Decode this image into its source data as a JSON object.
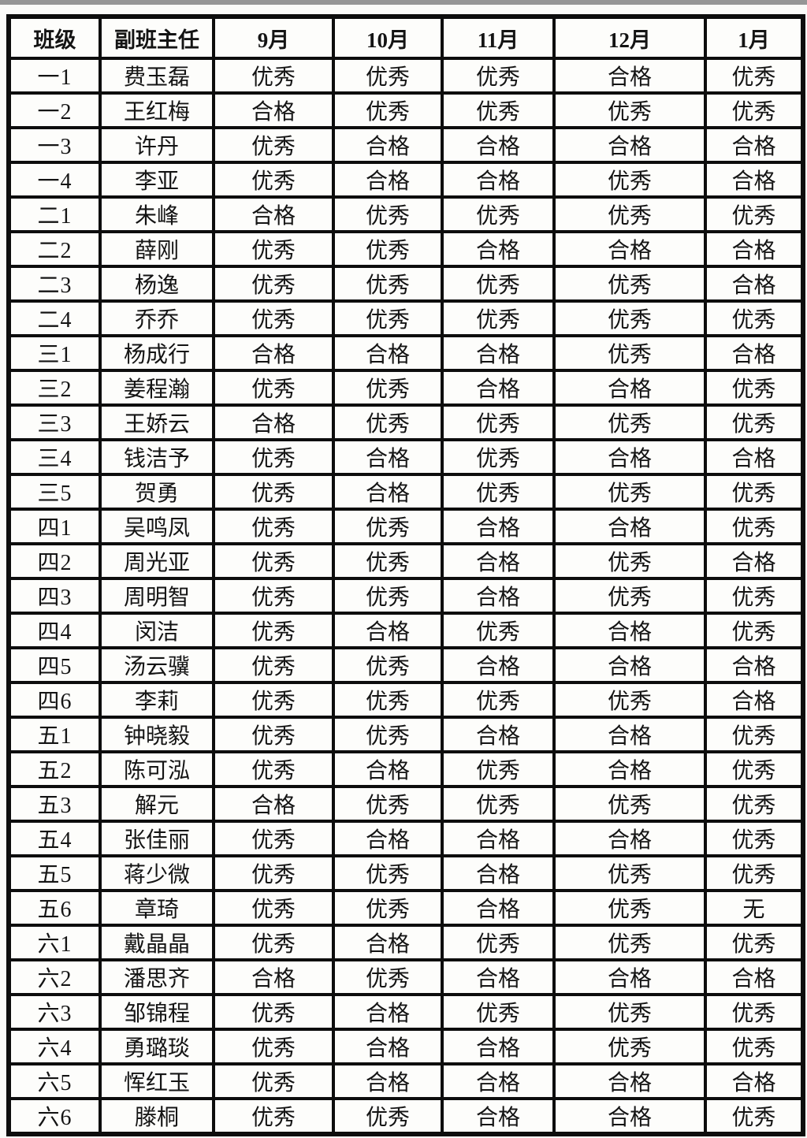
{
  "page": {
    "background_color": "#fbfbf9",
    "border_color": "#0d0d0d",
    "text_color": "#141414",
    "cell_background": "#fdfdfb"
  },
  "table": {
    "columns": [
      "班级",
      "副班主任",
      "9月",
      "10月",
      "11月",
      "12月",
      "1月"
    ],
    "grade_values_legend": [
      "优秀",
      "合格",
      "无"
    ],
    "rows": [
      {
        "class": "一1",
        "teacher": "费玉磊",
        "grades": [
          "优秀",
          "优秀",
          "优秀",
          "合格",
          "优秀"
        ]
      },
      {
        "class": "一2",
        "teacher": "王红梅",
        "grades": [
          "合格",
          "优秀",
          "优秀",
          "优秀",
          "优秀"
        ]
      },
      {
        "class": "一3",
        "teacher": "许丹",
        "grades": [
          "优秀",
          "合格",
          "合格",
          "合格",
          "合格"
        ]
      },
      {
        "class": "一4",
        "teacher": "李亚",
        "grades": [
          "优秀",
          "合格",
          "合格",
          "优秀",
          "合格"
        ]
      },
      {
        "class": "二1",
        "teacher": "朱峰",
        "grades": [
          "合格",
          "优秀",
          "优秀",
          "优秀",
          "优秀"
        ]
      },
      {
        "class": "二2",
        "teacher": "薛刚",
        "grades": [
          "优秀",
          "优秀",
          "合格",
          "合格",
          "合格"
        ]
      },
      {
        "class": "二3",
        "teacher": "杨逸",
        "grades": [
          "优秀",
          "优秀",
          "优秀",
          "优秀",
          "合格"
        ]
      },
      {
        "class": "二4",
        "teacher": "乔乔",
        "grades": [
          "优秀",
          "优秀",
          "优秀",
          "优秀",
          "优秀"
        ]
      },
      {
        "class": "三1",
        "teacher": "杨成行",
        "grades": [
          "合格",
          "合格",
          "合格",
          "优秀",
          "合格"
        ]
      },
      {
        "class": "三2",
        "teacher": "姜程瀚",
        "grades": [
          "优秀",
          "优秀",
          "合格",
          "合格",
          "优秀"
        ]
      },
      {
        "class": "三3",
        "teacher": "王娇云",
        "grades": [
          "合格",
          "优秀",
          "优秀",
          "优秀",
          "优秀"
        ]
      },
      {
        "class": "三4",
        "teacher": "钱洁予",
        "grades": [
          "优秀",
          "合格",
          "优秀",
          "合格",
          "合格"
        ]
      },
      {
        "class": "三5",
        "teacher": "贺勇",
        "grades": [
          "优秀",
          "合格",
          "优秀",
          "优秀",
          "优秀"
        ]
      },
      {
        "class": "四1",
        "teacher": "吴鸣凤",
        "grades": [
          "优秀",
          "优秀",
          "合格",
          "合格",
          "优秀"
        ]
      },
      {
        "class": "四2",
        "teacher": "周光亚",
        "grades": [
          "优秀",
          "优秀",
          "合格",
          "优秀",
          "合格"
        ]
      },
      {
        "class": "四3",
        "teacher": "周明智",
        "grades": [
          "优秀",
          "优秀",
          "合格",
          "优秀",
          "优秀"
        ]
      },
      {
        "class": "四4",
        "teacher": "闵洁",
        "grades": [
          "优秀",
          "合格",
          "优秀",
          "合格",
          "优秀"
        ]
      },
      {
        "class": "四5",
        "teacher": "汤云骥",
        "grades": [
          "优秀",
          "优秀",
          "合格",
          "合格",
          "合格"
        ]
      },
      {
        "class": "四6",
        "teacher": "李莉",
        "grades": [
          "优秀",
          "优秀",
          "优秀",
          "优秀",
          "合格"
        ]
      },
      {
        "class": "五1",
        "teacher": "钟晓毅",
        "grades": [
          "优秀",
          "优秀",
          "合格",
          "合格",
          "优秀"
        ]
      },
      {
        "class": "五2",
        "teacher": "陈可泓",
        "grades": [
          "优秀",
          "合格",
          "优秀",
          "合格",
          "优秀"
        ]
      },
      {
        "class": "五3",
        "teacher": "解元",
        "grades": [
          "合格",
          "优秀",
          "优秀",
          "优秀",
          "优秀"
        ]
      },
      {
        "class": "五4",
        "teacher": "张佳丽",
        "grades": [
          "优秀",
          "合格",
          "合格",
          "合格",
          "优秀"
        ]
      },
      {
        "class": "五5",
        "teacher": "蒋少微",
        "grades": [
          "优秀",
          "优秀",
          "合格",
          "优秀",
          "优秀"
        ]
      },
      {
        "class": "五6",
        "teacher": "章琦",
        "grades": [
          "优秀",
          "优秀",
          "合格",
          "优秀",
          "无"
        ]
      },
      {
        "class": "六1",
        "teacher": "戴晶晶",
        "grades": [
          "优秀",
          "合格",
          "优秀",
          "优秀",
          "优秀"
        ]
      },
      {
        "class": "六2",
        "teacher": "潘思齐",
        "grades": [
          "合格",
          "优秀",
          "合格",
          "合格",
          "合格"
        ]
      },
      {
        "class": "六3",
        "teacher": "邹锦程",
        "grades": [
          "优秀",
          "合格",
          "优秀",
          "优秀",
          "优秀"
        ]
      },
      {
        "class": "六4",
        "teacher": "勇璐琰",
        "grades": [
          "优秀",
          "合格",
          "合格",
          "优秀",
          "优秀"
        ]
      },
      {
        "class": "六5",
        "teacher": "恽红玉",
        "grades": [
          "优秀",
          "合格",
          "合格",
          "合格",
          "合格"
        ]
      },
      {
        "class": "六6",
        "teacher": "滕桐",
        "grades": [
          "优秀",
          "优秀",
          "合格",
          "合格",
          "优秀"
        ]
      }
    ]
  }
}
